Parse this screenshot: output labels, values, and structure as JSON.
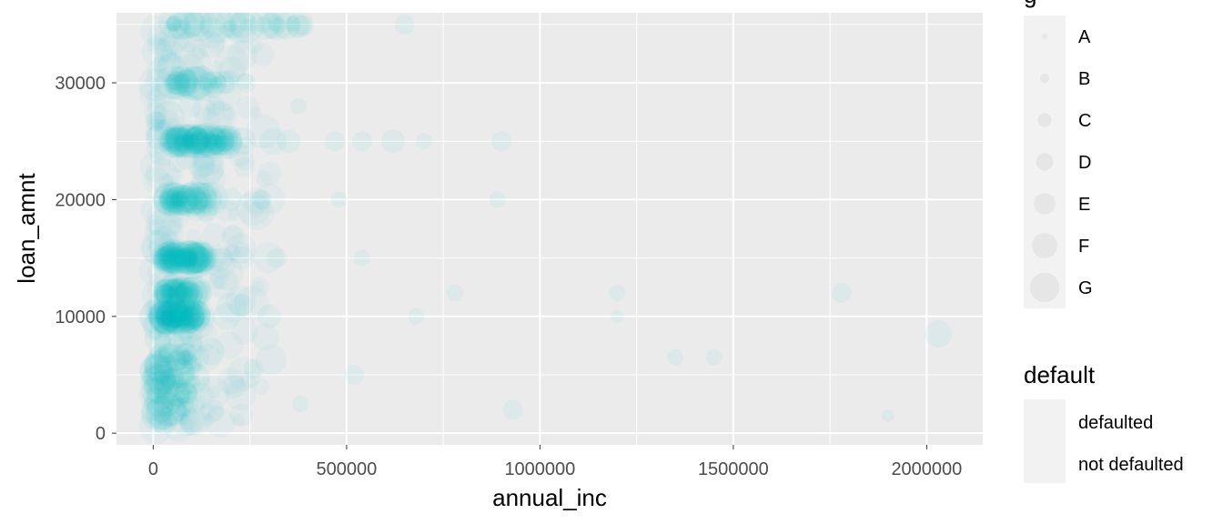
{
  "chart_data": {
    "type": "scatter",
    "xlabel": "annual_inc",
    "ylabel": "loan_amnt",
    "xlim": [
      -95000,
      2145000
    ],
    "ylim": [
      -1000,
      36000
    ],
    "x_ticks": [
      0,
      500000,
      1000000,
      1500000,
      2000000
    ],
    "x_tick_labels": [
      "0",
      "500000",
      "1000000",
      "1500000",
      "2000000"
    ],
    "y_ticks": [
      0,
      10000,
      20000,
      30000
    ],
    "y_tick_labels": [
      "0",
      "10000",
      "20000",
      "30000"
    ],
    "grid": true,
    "point_color": "#00bfc4",
    "point_alpha": 0.04,
    "panel_background": "#ebebeb",
    "gridline_color": "#ffffff",
    "legends": [
      {
        "title": "g",
        "aes": "size",
        "entries": [
          "A",
          "B",
          "C",
          "D",
          "E",
          "F",
          "G"
        ]
      },
      {
        "title": "default",
        "aes": "color",
        "entries": [
          "defaulted",
          "not defaulted"
        ]
      }
    ],
    "clusters": [
      {
        "x_range": [
          3000,
          110000
        ],
        "y_range": [
          1000,
          9000
        ],
        "density": "very high"
      },
      {
        "x_range": [
          30000,
          110000
        ],
        "y": 10000,
        "density": "very high"
      },
      {
        "x_range": [
          30000,
          110000
        ],
        "y": 12000,
        "density": "high"
      },
      {
        "x_range": [
          30000,
          130000
        ],
        "y": 15000,
        "density": "very high"
      },
      {
        "x_range": [
          40000,
          160000
        ],
        "y": 20000,
        "density": "high"
      },
      {
        "x_range": [
          50000,
          200000
        ],
        "y": 25000,
        "density": "very high"
      },
      {
        "x_range": [
          50000,
          200000
        ],
        "y": 30000,
        "density": "medium"
      },
      {
        "x_range": [
          50000,
          400000
        ],
        "y": 35000,
        "density": "medium"
      }
    ],
    "sample_points": [
      {
        "x": 75000,
        "y": 35000,
        "g": "F"
      },
      {
        "x": 120000,
        "y": 35000,
        "g": "G"
      },
      {
        "x": 230000,
        "y": 35000,
        "g": "E"
      },
      {
        "x": 290000,
        "y": 35000,
        "g": "F"
      },
      {
        "x": 380000,
        "y": 35000,
        "g": "E"
      },
      {
        "x": 650000,
        "y": 35000,
        "g": "C"
      },
      {
        "x": 90000,
        "y": 30000,
        "g": "E"
      },
      {
        "x": 180000,
        "y": 30000,
        "g": "D"
      },
      {
        "x": 240000,
        "y": 30000,
        "g": "C"
      },
      {
        "x": 95000,
        "y": 28000,
        "g": "D"
      },
      {
        "x": 160000,
        "y": 28000,
        "g": "C"
      },
      {
        "x": 375000,
        "y": 28000,
        "g": "B"
      },
      {
        "x": 85000,
        "y": 25000,
        "g": "G"
      },
      {
        "x": 150000,
        "y": 25000,
        "g": "F"
      },
      {
        "x": 230000,
        "y": 25000,
        "g": "E"
      },
      {
        "x": 310000,
        "y": 25000,
        "g": "E"
      },
      {
        "x": 350000,
        "y": 25000,
        "g": "D"
      },
      {
        "x": 470000,
        "y": 25000,
        "g": "C"
      },
      {
        "x": 540000,
        "y": 25000,
        "g": "C"
      },
      {
        "x": 620000,
        "y": 25000,
        "g": "D"
      },
      {
        "x": 700000,
        "y": 25000,
        "g": "B"
      },
      {
        "x": 900000,
        "y": 25000,
        "g": "C"
      },
      {
        "x": 75000,
        "y": 20000,
        "g": "F"
      },
      {
        "x": 140000,
        "y": 20000,
        "g": "E"
      },
      {
        "x": 200000,
        "y": 20000,
        "g": "D"
      },
      {
        "x": 280000,
        "y": 20000,
        "g": "C"
      },
      {
        "x": 480000,
        "y": 20000,
        "g": "B"
      },
      {
        "x": 890000,
        "y": 20000,
        "g": "B"
      },
      {
        "x": 60000,
        "y": 15000,
        "g": "G"
      },
      {
        "x": 110000,
        "y": 15000,
        "g": "F"
      },
      {
        "x": 170000,
        "y": 15000,
        "g": "E"
      },
      {
        "x": 230000,
        "y": 15000,
        "g": "D"
      },
      {
        "x": 320000,
        "y": 15000,
        "g": "C"
      },
      {
        "x": 540000,
        "y": 15000,
        "g": "B"
      },
      {
        "x": 55000,
        "y": 12000,
        "g": "E"
      },
      {
        "x": 120000,
        "y": 12000,
        "g": "D"
      },
      {
        "x": 780000,
        "y": 12000,
        "g": "B"
      },
      {
        "x": 1200000,
        "y": 12000,
        "g": "B"
      },
      {
        "x": 1780000,
        "y": 12000,
        "g": "C"
      },
      {
        "x": 60000,
        "y": 10000,
        "g": "G"
      },
      {
        "x": 120000,
        "y": 10000,
        "g": "F"
      },
      {
        "x": 190000,
        "y": 10000,
        "g": "E"
      },
      {
        "x": 300000,
        "y": 10000,
        "g": "D"
      },
      {
        "x": 680000,
        "y": 10000,
        "g": "B"
      },
      {
        "x": 1200000,
        "y": 10000,
        "g": "A"
      },
      {
        "x": 2030000,
        "y": 8500,
        "g": "E"
      },
      {
        "x": 1450000,
        "y": 6500,
        "g": "B"
      },
      {
        "x": 1350000,
        "y": 6500,
        "g": "B"
      },
      {
        "x": 520000,
        "y": 5000,
        "g": "C"
      },
      {
        "x": 930000,
        "y": 2000,
        "g": "C"
      },
      {
        "x": 1900000,
        "y": 1500,
        "g": "A"
      },
      {
        "x": 380000,
        "y": 2500,
        "g": "B"
      },
      {
        "x": 210000,
        "y": 4000,
        "g": "D"
      },
      {
        "x": 260000,
        "y": 5500,
        "g": "C"
      },
      {
        "x": 150000,
        "y": 7000,
        "g": "E"
      }
    ]
  }
}
